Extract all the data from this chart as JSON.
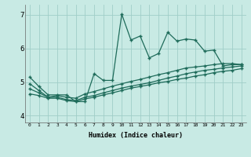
{
  "xlabel": "Humidex (Indice chaleur)",
  "xlim": [
    -0.5,
    23.5
  ],
  "ylim": [
    3.8,
    7.3
  ],
  "xticks": [
    0,
    1,
    2,
    3,
    4,
    5,
    6,
    7,
    8,
    9,
    10,
    11,
    12,
    13,
    14,
    15,
    16,
    17,
    18,
    19,
    20,
    21,
    22,
    23
  ],
  "yticks": [
    4,
    5,
    6,
    7
  ],
  "bg_color": "#c8eae4",
  "line_color": "#1e6b5a",
  "grid_color": "#a0cec8",
  "line1_x": [
    0,
    1,
    2,
    3,
    4,
    5,
    6,
    7,
    8,
    9,
    10,
    11,
    12,
    13,
    14,
    15,
    16,
    17,
    18,
    19,
    20,
    21,
    22,
    23
  ],
  "line1_y": [
    5.15,
    4.87,
    4.62,
    4.62,
    4.62,
    4.42,
    4.42,
    5.25,
    5.05,
    5.05,
    7.02,
    6.25,
    6.37,
    5.72,
    5.85,
    6.48,
    6.22,
    6.28,
    6.25,
    5.92,
    5.95,
    5.48,
    5.52,
    5.52
  ],
  "line2_x": [
    0,
    1,
    2,
    3,
    4,
    5,
    6,
    7,
    8,
    9,
    10,
    11,
    12,
    13,
    14,
    15,
    16,
    17,
    18,
    19,
    20,
    21,
    22,
    23
  ],
  "line2_y": [
    4.95,
    4.75,
    4.55,
    4.6,
    4.55,
    4.52,
    4.65,
    4.72,
    4.8,
    4.88,
    4.95,
    5.02,
    5.08,
    5.15,
    5.22,
    5.28,
    5.35,
    5.42,
    5.45,
    5.48,
    5.52,
    5.55,
    5.55,
    5.52
  ],
  "line3_x": [
    0,
    1,
    2,
    3,
    4,
    5,
    6,
    7,
    8,
    9,
    10,
    11,
    12,
    13,
    14,
    15,
    16,
    17,
    18,
    19,
    20,
    21,
    22,
    23
  ],
  "line3_y": [
    4.8,
    4.68,
    4.55,
    4.55,
    4.48,
    4.45,
    4.55,
    4.6,
    4.68,
    4.75,
    4.82,
    4.88,
    4.93,
    4.98,
    5.05,
    5.12,
    5.18,
    5.25,
    5.3,
    5.35,
    5.38,
    5.42,
    5.45,
    5.48
  ],
  "line4_x": [
    0,
    1,
    2,
    3,
    4,
    5,
    6,
    7,
    8,
    9,
    10,
    11,
    12,
    13,
    14,
    15,
    16,
    17,
    18,
    19,
    20,
    21,
    22,
    23
  ],
  "line4_y": [
    4.65,
    4.6,
    4.52,
    4.52,
    4.45,
    4.42,
    4.5,
    4.55,
    4.62,
    4.68,
    4.75,
    4.82,
    4.87,
    4.92,
    4.98,
    5.02,
    5.08,
    5.12,
    5.18,
    5.22,
    5.28,
    5.32,
    5.35,
    5.4
  ]
}
